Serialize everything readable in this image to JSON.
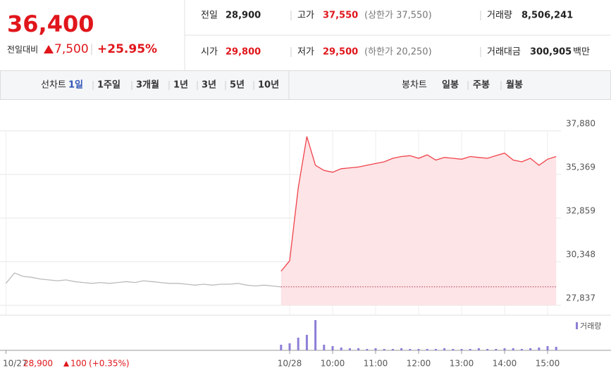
{
  "header": {
    "price": "36,400",
    "change_label": "전일대비",
    "change": "7,500",
    "change_rate": "+25.95%",
    "stats": [
      {
        "label": "전일",
        "value": "28,900"
      },
      {
        "label": "고가",
        "value": "37,550",
        "note": "(상한가 37,550)"
      },
      {
        "label": "거래량",
        "value": "8,506,241"
      },
      {
        "label": "시가",
        "value": "29,800"
      },
      {
        "label": "저가",
        "value": "29,500",
        "note": "(하한가 20,250)"
      },
      {
        "label": "거래대금",
        "value": "300,905",
        "unit": "백만"
      }
    ]
  },
  "tabs": {
    "line_label": "선차트",
    "line_periods": [
      "1일",
      "1주일",
      "3개월",
      "1년",
      "3년",
      "5년",
      "10년"
    ],
    "candle_label": "봉차트",
    "candle_periods": [
      "일봉",
      "주봉",
      "월봉"
    ]
  },
  "chart_data": {
    "type": "line",
    "categories": [
      "10/27",
      null,
      null,
      null,
      null,
      null,
      null,
      null,
      null,
      null,
      null,
      null,
      null,
      null,
      null,
      null,
      null,
      null,
      null,
      null,
      null,
      null,
      null,
      null,
      null,
      null,
      null,
      null,
      null,
      null,
      null,
      null,
      null,
      "10/28",
      null,
      null,
      null,
      null,
      "10:00",
      null,
      null,
      null,
      null,
      "11:00",
      null,
      null,
      null,
      null,
      "12:00",
      null,
      null,
      null,
      null,
      "13:00",
      null,
      null,
      null,
      null,
      "14:00",
      null,
      null,
      null,
      null,
      "15:00",
      null
    ],
    "series": [
      {
        "color": "#bbbbbb",
        "values": [
          29100,
          29700,
          29500,
          29450,
          29350,
          29300,
          29250,
          29300,
          29200,
          29150,
          29100,
          29150,
          29100,
          29150,
          29200,
          29150,
          29250,
          29200,
          29150,
          29100,
          29100,
          29050,
          29000,
          29050,
          29000,
          29050,
          29050,
          29100,
          29000,
          28950,
          29000,
          28950,
          28900,
          null,
          null,
          null,
          null,
          null,
          null,
          null,
          null,
          null,
          null,
          null,
          null,
          null,
          null,
          null,
          null,
          null,
          null,
          null,
          null,
          null,
          null,
          null,
          null,
          null,
          null,
          null,
          null,
          null,
          null,
          null,
          null
        ]
      },
      {
        "color": "#f0424a",
        "fill": "#fde4e6",
        "values": [
          null,
          null,
          null,
          null,
          null,
          null,
          null,
          null,
          null,
          null,
          null,
          null,
          null,
          null,
          null,
          null,
          null,
          null,
          null,
          null,
          null,
          null,
          null,
          null,
          null,
          null,
          null,
          null,
          null,
          null,
          null,
          null,
          29800,
          30400,
          34600,
          37550,
          35900,
          35600,
          35500,
          35700,
          35750,
          35800,
          35900,
          36000,
          36100,
          36300,
          36400,
          36450,
          36300,
          36500,
          36200,
          36350,
          36300,
          36250,
          36400,
          36350,
          36300,
          36450,
          36600,
          36200,
          36100,
          36300,
          35900,
          36250,
          36400
        ]
      },
      {
        "name": "거래량",
        "type": "bar",
        "color": "#8c7fd6",
        "values": [
          null,
          null,
          null,
          null,
          null,
          null,
          null,
          null,
          null,
          null,
          null,
          null,
          null,
          null,
          null,
          null,
          null,
          null,
          null,
          null,
          null,
          null,
          null,
          null,
          null,
          null,
          null,
          null,
          null,
          null,
          null,
          null,
          8,
          10,
          18,
          22,
          43,
          8,
          6,
          4,
          3,
          3,
          2,
          3,
          2,
          2,
          3,
          2,
          2,
          2,
          2,
          3,
          2,
          2,
          2,
          3,
          2,
          2,
          3,
          3,
          2,
          3,
          4,
          6,
          5
        ]
      }
    ],
    "ylim": [
      27837,
      37880
    ],
    "yticks": [
      {
        "value": 27837,
        "label": "27,837"
      },
      {
        "value": 30348,
        "label": "30,348"
      },
      {
        "value": 32859,
        "label": "32,859"
      },
      {
        "value": 35369,
        "label": "35,369"
      },
      {
        "value": 37880,
        "label": "37,880"
      }
    ],
    "reference": {
      "value": 28900,
      "label": "28,900"
    },
    "prev_change": "100",
    "prev_rate": "(+0.35%)",
    "grid": true
  }
}
